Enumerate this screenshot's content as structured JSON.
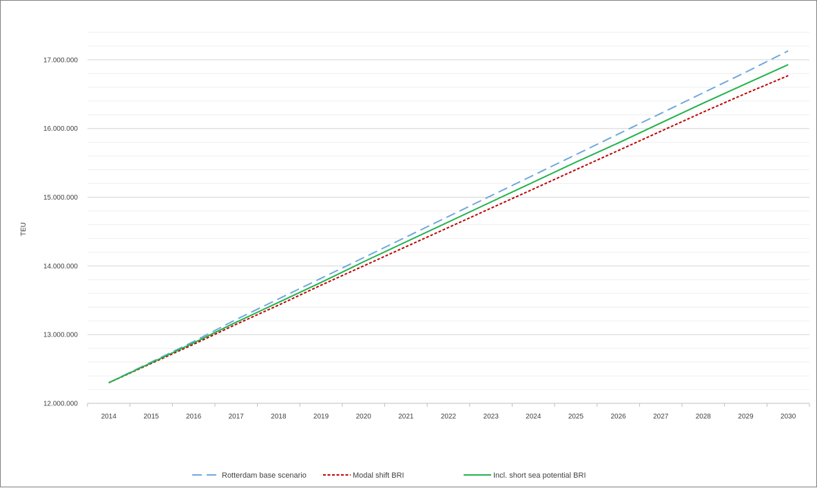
{
  "chart_data": {
    "type": "line",
    "title": "",
    "xlabel": "",
    "ylabel": "TEU",
    "x": [
      "2014",
      "2015",
      "2016",
      "2017",
      "2018",
      "2019",
      "2020",
      "2021",
      "2022",
      "2023",
      "2024",
      "2025",
      "2026",
      "2027",
      "2028",
      "2029",
      "2030"
    ],
    "ylim": [
      12000000,
      17500000
    ],
    "yticks": [
      12000000,
      13000000,
      14000000,
      15000000,
      16000000,
      17000000
    ],
    "ytick_labels": [
      "12.000.000",
      "13.000.000",
      "14.000.000",
      "15.000.000",
      "16.000.000",
      "17.000.000"
    ],
    "grid": true,
    "legend_position": "bottom",
    "series": [
      {
        "name": "Rotterdam base scenario",
        "color": "#6fa8dc",
        "style": "long-dash",
        "values": [
          12300000,
          12600000,
          12900000,
          13220000,
          13520000,
          13820000,
          14120000,
          14420000,
          14720000,
          15020000,
          15320000,
          15620000,
          15920000,
          16220000,
          16520000,
          16820000,
          17130000
        ]
      },
      {
        "name": "Modal shift BRI",
        "color": "#c00000",
        "style": "short-dash",
        "values": [
          12300000,
          12580000,
          12860000,
          13150000,
          13430000,
          13720000,
          14000000,
          14280000,
          14560000,
          14840000,
          15120000,
          15400000,
          15680000,
          15960000,
          16240000,
          16510000,
          16770000
        ]
      },
      {
        "name": "Incl. short sea potential BRI",
        "color": "#22b24c",
        "style": "solid",
        "values": [
          12300000,
          12590000,
          12880000,
          13180000,
          13470000,
          13760000,
          14060000,
          14350000,
          14640000,
          14930000,
          15220000,
          15510000,
          15790000,
          16080000,
          16370000,
          16650000,
          16930000
        ]
      }
    ]
  }
}
